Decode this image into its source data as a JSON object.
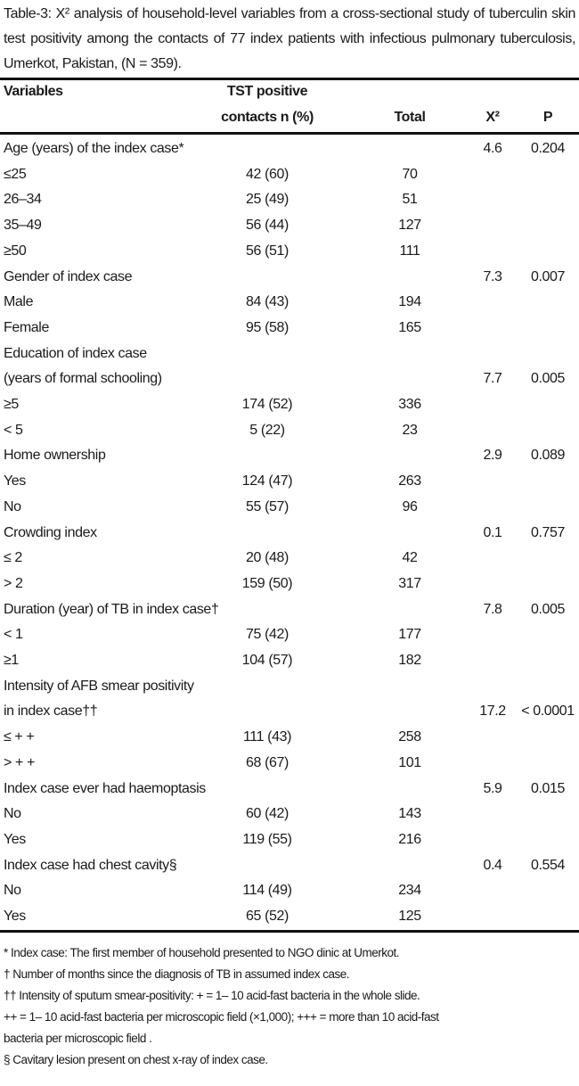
{
  "caption": "Table-3: X² analysis of household-level variables from a cross-sectional study of tuberculin skin test positivity among the contacts of 77 index patients with infectious pulmonary tuberculosis, Umerkot, Pakistan, (N = 359).",
  "headers": {
    "variables": "Variables",
    "tst_line1": "TST positive",
    "tst_line2": "contacts n (%)",
    "total": "Total",
    "chi": "X²",
    "p": "P"
  },
  "rows": [
    {
      "label": "Age (years) of the index case*",
      "n": "",
      "total": "",
      "chi": "4.6",
      "p": "0.204"
    },
    {
      "label": "≤25",
      "n": "42 (60)",
      "total": "70",
      "chi": "",
      "p": ""
    },
    {
      "label": "26–34",
      "n": "25 (49)",
      "total": "51",
      "chi": "",
      "p": ""
    },
    {
      "label": "35–49",
      "n": "56 (44)",
      "total": "127",
      "chi": "",
      "p": ""
    },
    {
      "label": "≥50",
      "n": "56 (51)",
      "total": "111",
      "chi": "",
      "p": ""
    },
    {
      "label": "Gender of index case",
      "n": "",
      "total": "",
      "chi": "7.3",
      "p": "0.007"
    },
    {
      "label": "Male",
      "n": "84 (43)",
      "total": "194",
      "chi": "",
      "p": ""
    },
    {
      "label": "Female",
      "n": "95 (58)",
      "total": "165",
      "chi": "",
      "p": ""
    },
    {
      "label": "Education of index case",
      "n": "",
      "total": "",
      "chi": "",
      "p": ""
    },
    {
      "label": "(years of formal schooling)",
      "n": "",
      "total": "",
      "chi": "7.7",
      "p": "0.005"
    },
    {
      "label": "≥5",
      "n": "174 (52)",
      "total": "336",
      "chi": "",
      "p": ""
    },
    {
      "label": "< 5",
      "n": "5 (22)",
      "total": "23",
      "chi": "",
      "p": ""
    },
    {
      "label": "Home ownership",
      "n": "",
      "total": "",
      "chi": "2.9",
      "p": "0.089"
    },
    {
      "label": "Yes",
      "n": "124 (47)",
      "total": "263",
      "chi": "",
      "p": ""
    },
    {
      "label": "No",
      "n": "55 (57)",
      "total": "96",
      "chi": "",
      "p": ""
    },
    {
      "label": "Crowding index",
      "n": "",
      "total": "",
      "chi": "0.1",
      "p": "0.757"
    },
    {
      "label": "≤ 2",
      "n": "20 (48)",
      "total": "42",
      "chi": "",
      "p": ""
    },
    {
      "label": "> 2",
      "n": "159 (50)",
      "total": "317",
      "chi": "",
      "p": ""
    },
    {
      "label": "Duration (year) of TB in index case†",
      "n": "",
      "total": "",
      "chi": "7.8",
      "p": "0.005"
    },
    {
      "label": "< 1",
      "n": "75 (42)",
      "total": "177",
      "chi": "",
      "p": ""
    },
    {
      "label": "≥1",
      "n": "104 (57)",
      "total": "182",
      "chi": "",
      "p": ""
    },
    {
      "label": "Intensity of AFB smear positivity",
      "n": "",
      "total": "",
      "chi": "",
      "p": ""
    },
    {
      "label": "in index case††",
      "n": "",
      "total": "",
      "chi": "17.2",
      "p": "< 0.0001"
    },
    {
      "label": "≤ + +",
      "n": "111 (43)",
      "total": "258",
      "chi": "",
      "p": ""
    },
    {
      "label": "> + +",
      "n": "68 (67)",
      "total": "101",
      "chi": "",
      "p": ""
    },
    {
      "label": "Index case ever had haemoptasis",
      "n": "",
      "total": "",
      "chi": "5.9",
      "p": "0.015"
    },
    {
      "label": "No",
      "n": "60 (42)",
      "total": "143",
      "chi": "",
      "p": ""
    },
    {
      "label": "Yes",
      "n": "119 (55)",
      "total": "216",
      "chi": "",
      "p": ""
    },
    {
      "label": "Index case had chest cavity§",
      "n": "",
      "total": "",
      "chi": "0.4",
      "p": "0.554"
    },
    {
      "label": "No",
      "n": "114 (49)",
      "total": "234",
      "chi": "",
      "p": ""
    },
    {
      "label": "Yes",
      "n": "65 (52)",
      "total": "125",
      "chi": "",
      "p": ""
    }
  ],
  "footnotes": [
    "* Index case: The first member of household presented to NGO dinic at Umerkot.",
    "† Number of months since the diagnosis of TB in assumed index case.",
    "†† Intensity of sputum smear-positivity: + = 1– 10 acid-fast bacteria in the whole slide.",
    "++ = 1– 10 acid-fast bacteria per microscopic field (×1,000); +++ = more than 10 acid-fast",
    "bacteria per microscopic field .",
    "§ Cavitary lesion present on chest x-ray of index case."
  ]
}
